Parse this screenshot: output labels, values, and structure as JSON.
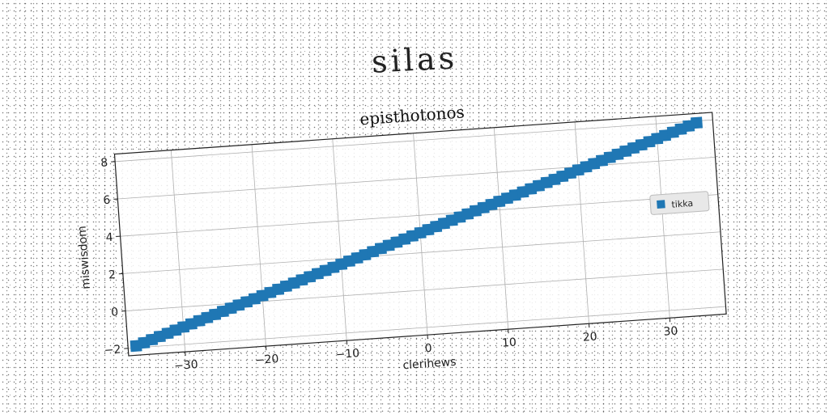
{
  "suptitle": "silas",
  "chart_data": {
    "type": "scatter",
    "title": "episthotonos",
    "xlabel": "clerihews",
    "ylabel": "miswisdom",
    "xlim": [
      -37,
      37
    ],
    "ylim": [
      -2.4,
      8.4
    ],
    "xticks": [
      -30,
      -20,
      -10,
      0,
      10,
      20,
      30
    ],
    "yticks": [
      -2,
      0,
      2,
      4,
      6,
      8
    ],
    "xtick_labels": [
      "−30",
      "−20",
      "−10",
      "0",
      "10",
      "20",
      "30"
    ],
    "ytick_labels": [
      "−2",
      "0",
      "2",
      "4",
      "6",
      "8"
    ],
    "grid": true,
    "legend_position": "center-right",
    "series": [
      {
        "name": "tikka",
        "color": "#1f77b4",
        "marker": "square",
        "x_start": -36,
        "x_end": 35,
        "x_step": 1,
        "y_start": -1.9,
        "y_end": 7.9
      }
    ]
  }
}
